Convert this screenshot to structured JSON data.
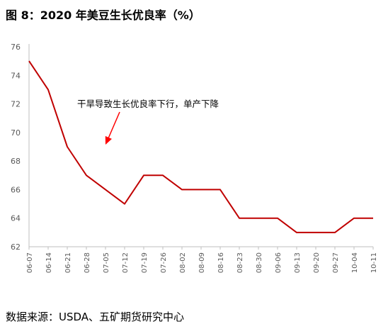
{
  "title": "图 8：2020 年美豆生长优良率（%）",
  "source": "数据来源：USDA、五矿期货研究中心",
  "chart_data": {
    "type": "line",
    "title": "",
    "xlabel": "",
    "ylabel": "",
    "x": [
      "06-07",
      "06-14",
      "06-21",
      "06-28",
      "07-05",
      "07-12",
      "07-19",
      "07-26",
      "08-02",
      "08-09",
      "08-16",
      "08-23",
      "08-30",
      "09-06",
      "09-13",
      "09-20",
      "09-27",
      "10-04",
      "10-11"
    ],
    "series": [
      {
        "values": [
          75,
          73,
          69,
          67,
          66,
          65,
          67,
          67,
          66,
          66,
          66,
          64,
          64,
          64,
          63,
          63,
          63,
          64,
          64
        ]
      }
    ],
    "ylim": [
      62,
      76
    ],
    "yticks": [
      62,
      64,
      66,
      68,
      70,
      72,
      74,
      76
    ],
    "grid": false,
    "line_color": "#C00000",
    "annotation": {
      "text": "干旱导致生长优良率下行，单产下降",
      "arrow_color": "#FF0000"
    }
  }
}
